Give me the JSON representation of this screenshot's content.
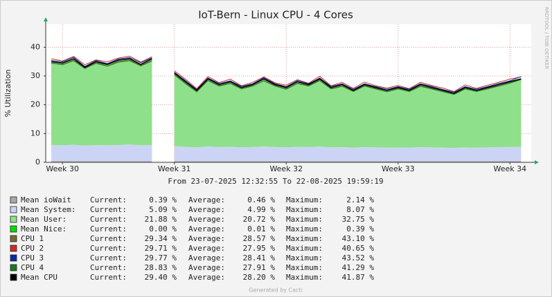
{
  "chart_data": {
    "type": "area",
    "title": "IoT-Bern - Linux CPU - 4 Cores",
    "subtitle": "From 23-07-2025 12:32:55 To 22-08-2025 19:59:19",
    "y_label": "% Utilization",
    "side_note": "RRDTOOL / TOBI OETIKER",
    "footer": "Generated by Cacti",
    "ylim": [
      0,
      48
    ],
    "yticks": [
      0,
      10,
      20,
      30,
      40
    ],
    "xlim": [
      29.85,
      34.19
    ],
    "xticks": [
      {
        "value": 30,
        "label": "Week 30"
      },
      {
        "value": 31,
        "label": "Week 31"
      },
      {
        "value": 32,
        "label": "Week 32"
      },
      {
        "value": 33,
        "label": "Week 33"
      },
      {
        "value": 34,
        "label": "Week 34"
      }
    ],
    "grid": true,
    "stat_headers": [
      "Current:",
      "Average:",
      "Maximum:"
    ],
    "x": [
      29.9,
      30.0,
      30.1,
      30.2,
      30.3,
      30.4,
      30.5,
      30.6,
      30.7,
      30.8,
      30.9,
      31.0,
      31.1,
      31.2,
      31.3,
      31.4,
      31.5,
      31.6,
      31.7,
      31.8,
      31.9,
      32.0,
      32.1,
      32.2,
      32.3,
      32.4,
      32.5,
      32.6,
      32.7,
      32.8,
      32.9,
      33.0,
      33.1,
      33.2,
      33.3,
      33.4,
      33.5,
      33.6,
      33.7,
      33.8,
      33.9,
      34.0,
      34.1
    ],
    "series": [
      {
        "name": "Mean ioWait",
        "color": "#aaaaaa",
        "style": "area",
        "stats": [
          "0.39 %",
          "0.46 %",
          "2.14 %"
        ],
        "values": [
          0.4,
          0.4,
          0.4,
          0.4,
          0.4,
          0.4,
          0.4,
          0.4,
          0.4,
          0.4,
          null,
          0.4,
          0.4,
          0.4,
          0.4,
          0.4,
          0.4,
          0.4,
          0.4,
          0.4,
          0.4,
          0.4,
          0.4,
          0.4,
          0.4,
          0.4,
          0.4,
          0.4,
          0.4,
          0.4,
          0.4,
          0.4,
          0.4,
          0.4,
          0.4,
          0.4,
          0.4,
          0.4,
          0.4,
          0.4,
          0.4,
          0.4,
          0.4
        ]
      },
      {
        "name": "Mean System:",
        "color": "#ccd4f5",
        "style": "area",
        "stats": [
          "5.09 %",
          "4.99 %",
          "8.07 %"
        ],
        "values": [
          5.6,
          5.5,
          5.7,
          5.4,
          5.6,
          5.5,
          5.6,
          5.8,
          5.5,
          5.6,
          null,
          5.2,
          5.0,
          4.8,
          5.1,
          4.9,
          5.0,
          4.8,
          4.9,
          5.1,
          4.9,
          4.8,
          5.0,
          4.9,
          5.1,
          4.8,
          4.9,
          4.7,
          4.9,
          4.8,
          4.7,
          4.8,
          4.7,
          4.9,
          4.8,
          4.7,
          4.6,
          4.8,
          4.7,
          4.8,
          4.9,
          4.9,
          5.0
        ]
      },
      {
        "name": "Mean User:",
        "color": "#8fe08a",
        "style": "area",
        "stats": [
          "21.88 %",
          "20.72 %",
          "32.75 %"
        ],
        "values": [
          29.0,
          28.6,
          29.9,
          27.2,
          29.0,
          28.1,
          29.5,
          29.8,
          28.1,
          30.0,
          null,
          25.4,
          22.6,
          19.8,
          23.5,
          21.7,
          22.6,
          20.8,
          21.7,
          23.5,
          21.7,
          20.8,
          22.6,
          21.7,
          23.5,
          20.8,
          21.7,
          19.9,
          21.7,
          20.8,
          19.9,
          20.8,
          19.9,
          21.7,
          20.8,
          19.9,
          19.0,
          20.8,
          19.9,
          20.8,
          21.7,
          22.7,
          23.6
        ]
      },
      {
        "name": "Mean Nice:",
        "color": "#00e000",
        "style": "area",
        "stats": [
          "0.00 %",
          "0.01 %",
          "0.39 %"
        ],
        "values": [
          0,
          0,
          0,
          0,
          0,
          0,
          0,
          0,
          0,
          0,
          null,
          0,
          0,
          0,
          0,
          0,
          0,
          0,
          0,
          0,
          0,
          0,
          0,
          0,
          0,
          0,
          0,
          0,
          0,
          0,
          0,
          0,
          0,
          0,
          0,
          0,
          0,
          0,
          0,
          0,
          0,
          0,
          0
        ]
      },
      {
        "name": "CPU 1",
        "color": "#7a6a35",
        "style": "line",
        "stats": [
          "29.34 %",
          "28.57 %",
          "43.10 %"
        ],
        "values": [
          34.6,
          34.0,
          35.5,
          32.8,
          34.7,
          33.5,
          35.0,
          35.6,
          33.7,
          35.4,
          null,
          30.5,
          27.6,
          24.7,
          28.5,
          26.6,
          27.5,
          25.8,
          26.6,
          28.4,
          26.7,
          25.6,
          27.5,
          26.7,
          28.6,
          25.7,
          26.5,
          24.8,
          26.6,
          25.7,
          24.6,
          25.7,
          24.8,
          26.5,
          25.7,
          24.6,
          23.8,
          25.6,
          24.7,
          25.8,
          26.6,
          27.6,
          28.8
        ]
      },
      {
        "name": "CPU 2",
        "color": "#d02a2a",
        "style": "line",
        "stats": [
          "29.71 %",
          "27.95 %",
          "40.65 %"
        ],
        "values": [
          36.0,
          35.2,
          36.8,
          33.9,
          35.6,
          34.9,
          36.2,
          36.9,
          34.8,
          36.7,
          null,
          31.8,
          28.9,
          25.6,
          29.8,
          27.7,
          28.9,
          26.6,
          27.8,
          29.7,
          27.6,
          26.8,
          28.7,
          27.5,
          29.9,
          26.6,
          27.8,
          25.7,
          27.9,
          26.6,
          25.8,
          26.7,
          25.6,
          27.8,
          26.7,
          25.8,
          24.6,
          26.9,
          25.7,
          26.8,
          27.8,
          28.9,
          29.7
        ]
      },
      {
        "name": "CPU 3",
        "color": "#0a2aa0",
        "style": "line",
        "stats": [
          "29.77 %",
          "28.41 %",
          "43.52 %"
        ],
        "values": [
          35.4,
          34.9,
          36.5,
          33.3,
          35.4,
          34.3,
          35.9,
          36.4,
          34.6,
          36.3,
          null,
          31.3,
          28.4,
          25.3,
          29.3,
          27.4,
          28.3,
          26.4,
          27.3,
          29.4,
          27.3,
          26.3,
          28.4,
          27.3,
          29.3,
          26.4,
          27.3,
          25.4,
          27.3,
          26.3,
          25.4,
          26.3,
          25.4,
          27.3,
          26.4,
          25.3,
          24.4,
          26.3,
          25.4,
          26.3,
          27.4,
          28.3,
          29.8
        ]
      },
      {
        "name": "CPU 4",
        "color": "#1a7a1e",
        "style": "line",
        "stats": [
          "28.83 %",
          "27.91 %",
          "41.29 %"
        ],
        "values": [
          34.5,
          33.9,
          35.3,
          32.6,
          34.4,
          33.4,
          34.8,
          35.3,
          33.5,
          35.2,
          null,
          30.4,
          27.3,
          24.5,
          28.4,
          26.5,
          27.4,
          25.5,
          26.5,
          28.3,
          26.5,
          25.4,
          27.4,
          26.5,
          28.4,
          25.5,
          26.4,
          24.6,
          26.5,
          25.5,
          24.5,
          25.5,
          24.6,
          26.4,
          25.5,
          24.5,
          23.6,
          25.5,
          24.6,
          25.5,
          26.5,
          27.5,
          28.8
        ]
      },
      {
        "name": "Mean CPU",
        "color": "#000000",
        "style": "line",
        "stats": [
          "29.40 %",
          "28.20 %",
          "41.87 %"
        ],
        "values": [
          35,
          34.5,
          36,
          33,
          35,
          34,
          35.5,
          36,
          34,
          36,
          null,
          31,
          28,
          25,
          29,
          27,
          28,
          26,
          27,
          29,
          27,
          26,
          28,
          27,
          29,
          26,
          27,
          25,
          27,
          26,
          25,
          26,
          25,
          27,
          26,
          25,
          24,
          26,
          25,
          26,
          27,
          28,
          29
        ]
      }
    ]
  }
}
